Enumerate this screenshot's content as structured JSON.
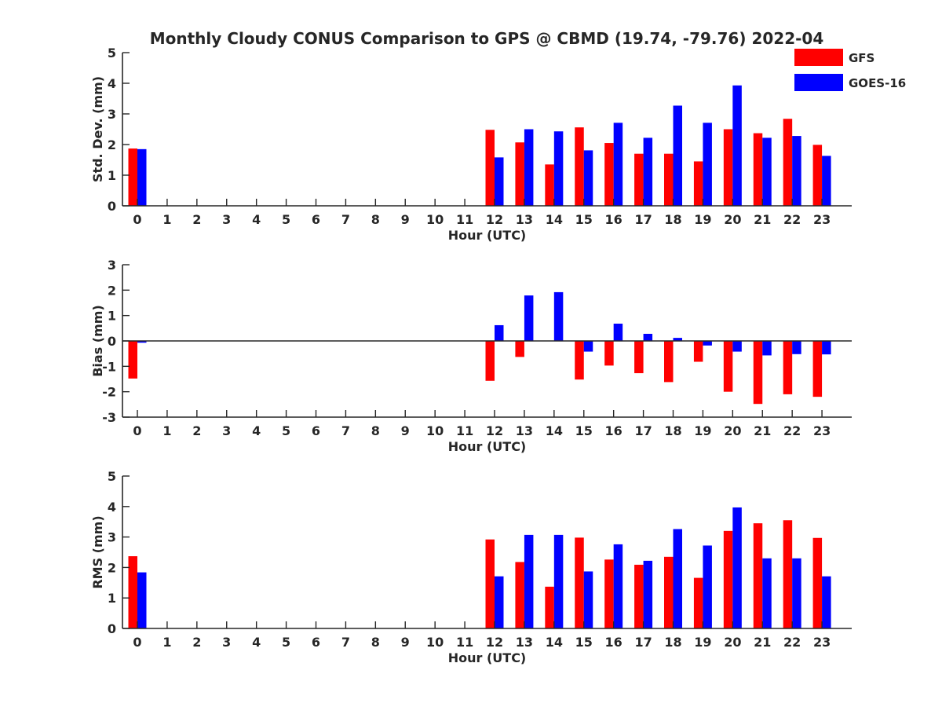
{
  "chart_data": {
    "title": "Monthly Cloudy CONUS Comparison to GPS @ CBMD (19.74, -79.76) 2022-04",
    "type": "bar",
    "categories": [
      "0",
      "1",
      "2",
      "3",
      "4",
      "5",
      "6",
      "7",
      "8",
      "9",
      "10",
      "11",
      "12",
      "13",
      "14",
      "15",
      "16",
      "17",
      "18",
      "19",
      "20",
      "21",
      "22",
      "23"
    ],
    "legend": {
      "placement": "top-right",
      "entries": [
        "GFS",
        "GOES-16"
      ]
    },
    "colors": {
      "GFS": "#ff0000",
      "GOES-16": "#0000ff",
      "axis": "#262626"
    },
    "panels": [
      {
        "ylabel": "Std. Dev. (mm)",
        "xlabel": "Hour (UTC)",
        "ylim": [
          0,
          5
        ],
        "yticks": [
          0,
          1,
          2,
          3,
          4,
          5
        ],
        "grid": false,
        "series": [
          {
            "name": "GFS",
            "values": [
              1.87,
              null,
              null,
              null,
              null,
              null,
              null,
              null,
              null,
              null,
              null,
              null,
              2.48,
              2.07,
              1.35,
              2.56,
              2.05,
              1.7,
              1.7,
              1.45,
              2.5,
              2.37,
              2.84,
              1.99
            ]
          },
          {
            "name": "GOES-16",
            "values": [
              1.85,
              null,
              null,
              null,
              null,
              null,
              null,
              null,
              null,
              null,
              null,
              null,
              1.58,
              2.5,
              2.43,
              1.81,
              2.71,
              2.22,
              3.27,
              2.71,
              3.93,
              2.22,
              2.28,
              1.63
            ]
          }
        ]
      },
      {
        "ylabel": "Bias (mm)",
        "xlabel": "Hour (UTC)",
        "ylim": [
          -3,
          3
        ],
        "yticks": [
          -3,
          -2,
          -1,
          0,
          1,
          2,
          3
        ],
        "grid": false,
        "zero_line": true,
        "series": [
          {
            "name": "GFS",
            "values": [
              -1.48,
              null,
              null,
              null,
              null,
              null,
              null,
              null,
              null,
              null,
              null,
              null,
              -1.57,
              -0.63,
              0,
              -1.52,
              -0.97,
              -1.27,
              -1.62,
              -0.82,
              -2.0,
              -2.48,
              -2.1,
              -2.2
            ]
          },
          {
            "name": "GOES-16",
            "values": [
              -0.07,
              null,
              null,
              null,
              null,
              null,
              null,
              null,
              null,
              null,
              null,
              null,
              0.62,
              1.79,
              1.92,
              -0.42,
              0.68,
              0.28,
              0.12,
              -0.18,
              -0.42,
              -0.57,
              -0.52,
              -0.53
            ]
          }
        ]
      },
      {
        "ylabel": "RMS (mm)",
        "xlabel": "Hour (UTC)",
        "ylim": [
          0,
          5
        ],
        "yticks": [
          0,
          1,
          2,
          3,
          4,
          5
        ],
        "grid": false,
        "series": [
          {
            "name": "GFS",
            "values": [
              2.37,
              null,
              null,
              null,
              null,
              null,
              null,
              null,
              null,
              null,
              null,
              null,
              2.92,
              2.18,
              1.37,
              2.98,
              2.26,
              2.09,
              2.35,
              1.66,
              3.2,
              3.45,
              3.55,
              2.97
            ]
          },
          {
            "name": "GOES-16",
            "values": [
              1.84,
              null,
              null,
              null,
              null,
              null,
              null,
              null,
              null,
              null,
              null,
              null,
              1.71,
              3.07,
              3.07,
              1.87,
              2.76,
              2.22,
              3.26,
              2.72,
              3.97,
              2.3,
              2.3,
              1.71
            ]
          }
        ]
      }
    ]
  }
}
